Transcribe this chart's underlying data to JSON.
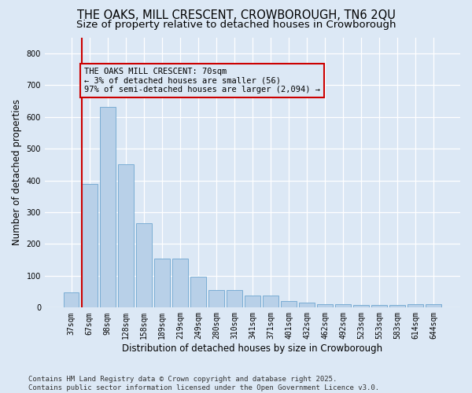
{
  "title": "THE OAKS, MILL CRESCENT, CROWBOROUGH, TN6 2QU",
  "subtitle": "Size of property relative to detached houses in Crowborough",
  "xlabel": "Distribution of detached houses by size in Crowborough",
  "ylabel": "Number of detached properties",
  "categories": [
    "37sqm",
    "67sqm",
    "98sqm",
    "128sqm",
    "158sqm",
    "189sqm",
    "219sqm",
    "249sqm",
    "280sqm",
    "310sqm",
    "341sqm",
    "371sqm",
    "401sqm",
    "432sqm",
    "462sqm",
    "492sqm",
    "523sqm",
    "553sqm",
    "583sqm",
    "614sqm",
    "644sqm"
  ],
  "values": [
    47,
    390,
    630,
    450,
    265,
    155,
    155,
    98,
    55,
    55,
    38,
    38,
    20,
    15,
    10,
    10,
    8,
    8,
    8,
    10,
    10
  ],
  "bar_color": "#b8d0e8",
  "bar_edge_color": "#7aadd4",
  "vline_x_pos": 0.575,
  "vline_color": "#cc0000",
  "annotation_text": "THE OAKS MILL CRESCENT: 70sqm\n← 3% of detached houses are smaller (56)\n97% of semi-detached houses are larger (2,094) →",
  "annotation_box_edgecolor": "#cc0000",
  "ylim": [
    0,
    850
  ],
  "yticks": [
    0,
    100,
    200,
    300,
    400,
    500,
    600,
    700,
    800
  ],
  "footer": "Contains HM Land Registry data © Crown copyright and database right 2025.\nContains public sector information licensed under the Open Government Licence v3.0.",
  "background_color": "#dce8f5",
  "grid_color": "#ffffff",
  "title_fontsize": 10.5,
  "subtitle_fontsize": 9.5,
  "axis_label_fontsize": 8.5,
  "tick_fontsize": 7,
  "annotation_fontsize": 7.5,
  "footer_fontsize": 6.5
}
